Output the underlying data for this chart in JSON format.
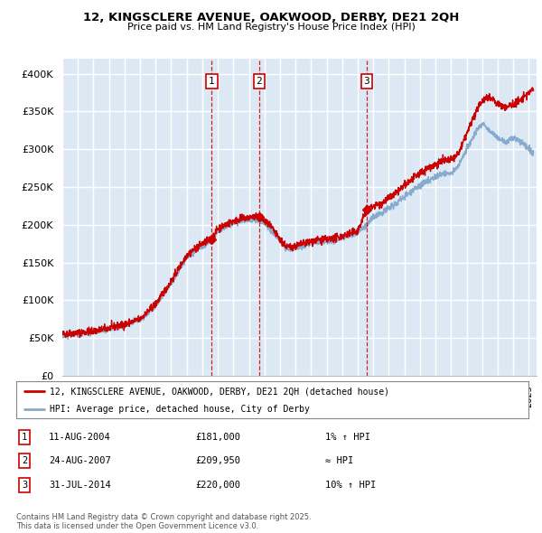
{
  "title": "12, KINGSCLERE AVENUE, OAKWOOD, DERBY, DE21 2QH",
  "subtitle": "Price paid vs. HM Land Registry's House Price Index (HPI)",
  "xlim_start": 1995.0,
  "xlim_end": 2025.5,
  "ylim_min": 0,
  "ylim_max": 420000,
  "yticks": [
    0,
    50000,
    100000,
    150000,
    200000,
    250000,
    300000,
    350000,
    400000
  ],
  "ytick_labels": [
    "£0",
    "£50K",
    "£100K",
    "£150K",
    "£200K",
    "£250K",
    "£300K",
    "£350K",
    "£400K"
  ],
  "background_color": "#dce9f5",
  "plot_bg_color": "#dce9f5",
  "red_line_color": "#cc0000",
  "blue_line_color": "#88aacc",
  "grid_color": "#ffffff",
  "sale_dates": [
    2004.61,
    2007.65,
    2014.58
  ],
  "sale_prices": [
    181000,
    209950,
    220000
  ],
  "sale_labels": [
    "1",
    "2",
    "3"
  ],
  "legend_line1": "12, KINGSCLERE AVENUE, OAKWOOD, DERBY, DE21 2QH (detached house)",
  "legend_line2": "HPI: Average price, detached house, City of Derby",
  "table_rows": [
    [
      "1",
      "11-AUG-2004",
      "£181,000",
      "1% ↑ HPI"
    ],
    [
      "2",
      "24-AUG-2007",
      "£209,950",
      "≈ HPI"
    ],
    [
      "3",
      "31-JUL-2014",
      "£220,000",
      "10% ↑ HPI"
    ]
  ],
  "footnote": "Contains HM Land Registry data © Crown copyright and database right 2025.\nThis data is licensed under the Open Government Licence v3.0."
}
